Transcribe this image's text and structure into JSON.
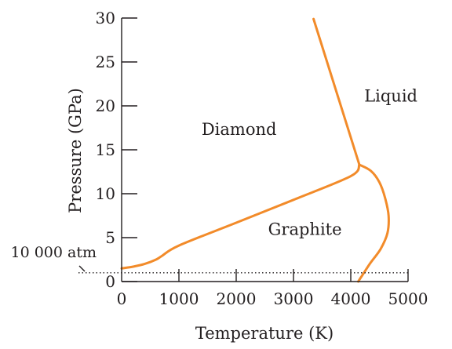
{
  "chart_data": {
    "type": "line",
    "title": "",
    "xlabel": "Temperature (K)",
    "ylabel": "Pressure (GPa)",
    "xlim": [
      0,
      5000
    ],
    "ylim": [
      0,
      30
    ],
    "xticks": [
      "0",
      "1000",
      "2000",
      "3000",
      "4000",
      "5000"
    ],
    "yticks": [
      "0",
      "5",
      "10",
      "15",
      "20",
      "25",
      "30"
    ],
    "grid": false,
    "line_color": "#f28b2a",
    "regions": [
      {
        "name": "diamond",
        "label": "Diamond",
        "x": 2050,
        "y": 16.7
      },
      {
        "name": "liquid",
        "label": "Liquid",
        "x": 4700,
        "y": 20.5
      },
      {
        "name": "graphite",
        "label": "Graphite",
        "x": 3200,
        "y": 5.3
      }
    ],
    "series": [
      {
        "id": "graphite-diamond",
        "points": [
          [
            0,
            1.5
          ],
          [
            200,
            1.7
          ],
          [
            400,
            2.0
          ],
          [
            600,
            2.5
          ],
          [
            700,
            2.9
          ],
          [
            1000,
            4.1
          ],
          [
            2000,
            6.7
          ],
          [
            3000,
            9.3
          ],
          [
            4000,
            12.0
          ],
          [
            4150,
            13.3
          ]
        ]
      },
      {
        "id": "diamond-liquid",
        "points": [
          [
            3350,
            29.9
          ],
          [
            4150,
            13.3
          ]
        ]
      },
      {
        "id": "graphite-liquid",
        "points": [
          [
            4150,
            13.3
          ],
          [
            4350,
            12.6
          ],
          [
            4500,
            11.3
          ],
          [
            4600,
            9.5
          ],
          [
            4660,
            7.5
          ],
          [
            4640,
            5.5
          ],
          [
            4520,
            3.7
          ],
          [
            4330,
            2.0
          ],
          [
            4180,
            0.5
          ],
          [
            4130,
            0.0
          ]
        ]
      }
    ],
    "reference_line": {
      "y": 1.0,
      "label": "10 000 atm"
    }
  }
}
